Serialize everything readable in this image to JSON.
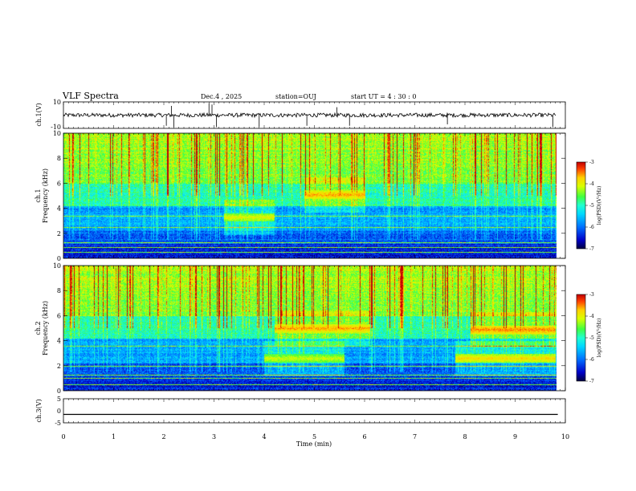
{
  "header": {
    "title": "VLF Spectra",
    "date": "Dec.4 , 2025",
    "station": "station=OUJ",
    "start_ut": "start UT = 4 : 30 : 0"
  },
  "chart_data": [
    {
      "type": "line",
      "name": "ch1-waveform",
      "ylabel": "ch.1(V)",
      "ylim": [
        -10,
        10
      ],
      "yticks": [
        "10",
        "-10"
      ],
      "xlim": [
        0,
        10
      ],
      "baseline": 0,
      "spikes": [
        {
          "x": 2.05,
          "y": -8
        },
        {
          "x": 2.15,
          "y": 7
        },
        {
          "x": 2.2,
          "y": -9
        },
        {
          "x": 2.9,
          "y": 9
        },
        {
          "x": 2.96,
          "y": 8
        },
        {
          "x": 3.05,
          "y": -9
        },
        {
          "x": 3.9,
          "y": -9
        },
        {
          "x": 4.85,
          "y": -8
        },
        {
          "x": 5.45,
          "y": 6
        },
        {
          "x": 5.7,
          "y": -8
        },
        {
          "x": 7.65,
          "y": -7
        },
        {
          "x": 9.75,
          "y": -9
        }
      ]
    },
    {
      "type": "heatmap",
      "name": "ch1-spectrogram",
      "ylabel": "ch.1\nFrequency (kHz)",
      "xlim": [
        0,
        10
      ],
      "ylim": [
        0,
        10
      ],
      "yticks": [
        "0",
        "2",
        "4",
        "6",
        "8",
        "10"
      ],
      "colorbar": {
        "label": "log(PSD)(V²/Hz)",
        "ticks": [
          "-3",
          "-4",
          "-5",
          "-6",
          "-7"
        ],
        "range": [
          -7,
          -3
        ]
      },
      "emission_bands": [
        {
          "x0": 4.8,
          "x1": 6.0,
          "f": 5.1,
          "level": -3.6
        },
        {
          "x0": 3.2,
          "x1": 4.2,
          "f": 3.3,
          "level": -4.0
        }
      ],
      "persistent_lines_khz": [
        0.5,
        0.9,
        1.3,
        2.5,
        3.4
      ]
    },
    {
      "type": "heatmap",
      "name": "ch2-spectrogram",
      "ylabel": "ch.2\nFrequency (kHz)",
      "xlim": [
        0,
        10
      ],
      "ylim": [
        0,
        10
      ],
      "yticks": [
        "0",
        "2",
        "4",
        "6",
        "8",
        "10"
      ],
      "colorbar": {
        "label": "log(PSD)(V²/Hz)",
        "ticks": [
          "-3",
          "-4",
          "-5",
          "-6",
          "-7"
        ],
        "range": [
          -7,
          -3
        ]
      },
      "emission_bands": [
        {
          "x0": 4.2,
          "x1": 6.1,
          "f": 5.0,
          "level": -3.6
        },
        {
          "x0": 8.1,
          "x1": 9.8,
          "f": 4.9,
          "level": -3.5
        },
        {
          "x0": 7.8,
          "x1": 9.8,
          "f": 2.6,
          "level": -3.8
        },
        {
          "x0": 4.0,
          "x1": 5.6,
          "f": 2.6,
          "level": -4.1
        }
      ],
      "persistent_lines_khz": [
        0.5,
        1.0,
        1.3,
        2.0,
        3.6
      ]
    },
    {
      "type": "line",
      "name": "ch3-waveform",
      "ylabel": "ch.3(V)",
      "ylim": [
        -5,
        5
      ],
      "yticks": [
        "5",
        "0",
        "-5"
      ],
      "xlim": [
        0,
        10
      ],
      "baseline": -1.5
    }
  ],
  "x_axis": {
    "label": "Time (min)",
    "ticks": [
      "0",
      "1",
      "2",
      "3",
      "4",
      "5",
      "6",
      "7",
      "8",
      "9",
      "10"
    ],
    "range": [
      0,
      10
    ]
  },
  "colors": {
    "frame": "#000000",
    "colormap": [
      "#000040",
      "#0000c8",
      "#0070ff",
      "#00d8ff",
      "#20ffd0",
      "#40ff40",
      "#d8ff00",
      "#ffd000",
      "#ff4000",
      "#c00000"
    ]
  }
}
